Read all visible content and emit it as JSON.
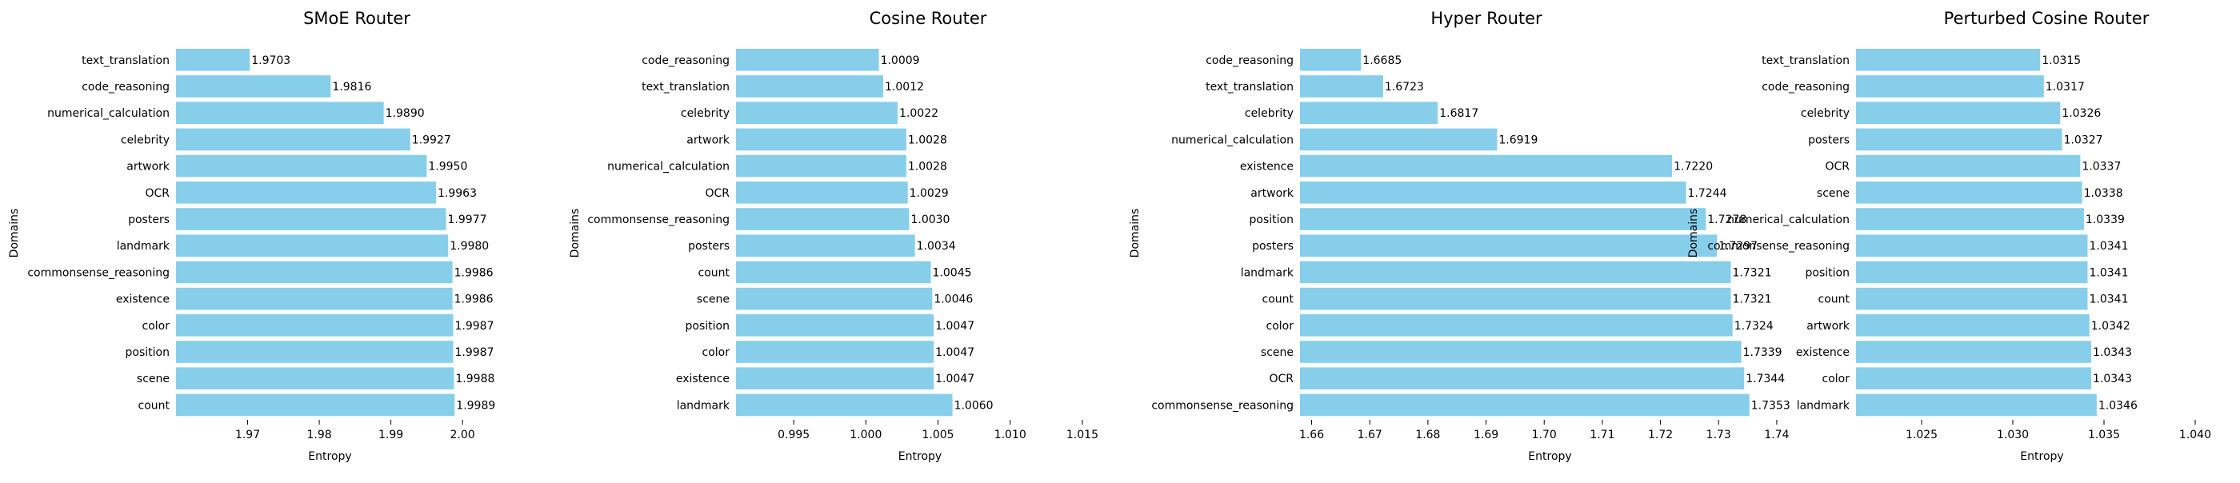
{
  "chart_data": [
    {
      "type": "bar",
      "orientation": "horizontal",
      "title": "SMoE Router",
      "xlabel": "Entropy",
      "ylabel": "Domains",
      "xlim": [
        1.96,
        2.003
      ],
      "xticks": [
        "1.97",
        "1.98",
        "1.99",
        "2.00"
      ],
      "xtick_values": [
        1.97,
        1.98,
        1.99,
        2.0
      ],
      "categories": [
        "text_translation",
        "code_reasoning",
        "numerical_calculation",
        "celebrity",
        "artwork",
        "OCR",
        "posters",
        "landmark",
        "commonsense_reasoning",
        "existence",
        "color",
        "position",
        "scene",
        "count"
      ],
      "values": [
        1.9703,
        1.9816,
        1.989,
        1.9927,
        1.995,
        1.9963,
        1.9977,
        1.998,
        1.9986,
        1.9986,
        1.9987,
        1.9987,
        1.9988,
        1.9989
      ],
      "value_labels": [
        "1.9703",
        "1.9816",
        "1.9890",
        "1.9927",
        "1.9950",
        "1.9963",
        "1.9977",
        "1.9980",
        "1.9986",
        "1.9986",
        "1.9987",
        "1.9987",
        "1.9988",
        "1.9989"
      ],
      "bar_color": "#87ceeb",
      "grid": false
    },
    {
      "type": "bar",
      "orientation": "horizontal",
      "title": "Cosine Router",
      "xlabel": "Entropy",
      "ylabel": "Domains",
      "xlim": [
        0.991,
        1.0165
      ],
      "xticks": [
        "0.995",
        "1.000",
        "1.005",
        "1.010",
        "1.015"
      ],
      "xtick_values": [
        0.995,
        1.0,
        1.005,
        1.01,
        1.015
      ],
      "categories": [
        "code_reasoning",
        "text_translation",
        "celebrity",
        "artwork",
        "numerical_calculation",
        "OCR",
        "commonsense_reasoning",
        "posters",
        "count",
        "scene",
        "position",
        "color",
        "existence",
        "landmark"
      ],
      "values": [
        1.0009,
        1.0012,
        1.0022,
        1.0028,
        1.0028,
        1.0029,
        1.003,
        1.0034,
        1.0045,
        1.0046,
        1.0047,
        1.0047,
        1.0047,
        1.006
      ],
      "value_labels": [
        "1.0009",
        "1.0012",
        "1.0022",
        "1.0028",
        "1.0028",
        "1.0029",
        "1.0030",
        "1.0034",
        "1.0045",
        "1.0046",
        "1.0047",
        "1.0047",
        "1.0047",
        "1.0060"
      ],
      "bar_color": "#87ceeb",
      "grid": false
    },
    {
      "type": "bar",
      "orientation": "horizontal",
      "title": "Hyper Router",
      "xlabel": "Entropy",
      "ylabel": "Domains",
      "xlim": [
        1.658,
        1.744
      ],
      "xticks": [
        "1.66",
        "1.67",
        "1.68",
        "1.69",
        "1.70",
        "1.71",
        "1.72",
        "1.73",
        "1.74"
      ],
      "xtick_values": [
        1.66,
        1.67,
        1.68,
        1.69,
        1.7,
        1.71,
        1.72,
        1.73,
        1.74
      ],
      "categories": [
        "code_reasoning",
        "text_translation",
        "celebrity",
        "numerical_calculation",
        "existence",
        "artwork",
        "position",
        "posters",
        "landmark",
        "count",
        "color",
        "scene",
        "OCR",
        "commonsense_reasoning"
      ],
      "values": [
        1.6685,
        1.6723,
        1.6817,
        1.6919,
        1.722,
        1.7244,
        1.7278,
        1.7297,
        1.7321,
        1.7321,
        1.7324,
        1.7339,
        1.7344,
        1.7353
      ],
      "value_labels": [
        "1.6685",
        "1.6723",
        "1.6817",
        "1.6919",
        "1.7220",
        "1.7244",
        "1.7278",
        "1.7297",
        "1.7321",
        "1.7321",
        "1.7324",
        "1.7339",
        "1.7344",
        "1.7353"
      ],
      "bar_color": "#87ceeb",
      "grid": false
    },
    {
      "type": "bar",
      "orientation": "horizontal",
      "title": "Perturbed Cosine Router",
      "xlabel": "Entropy",
      "ylabel": "Domains",
      "xlim": [
        1.0214,
        1.0418
      ],
      "xticks": [
        "1.025",
        "1.030",
        "1.035",
        "1.040"
      ],
      "xtick_values": [
        1.025,
        1.03,
        1.035,
        1.04
      ],
      "categories": [
        "text_translation",
        "code_reasoning",
        "celebrity",
        "posters",
        "OCR",
        "scene",
        "numerical_calculation",
        "commonsense_reasoning",
        "position",
        "count",
        "artwork",
        "existence",
        "color",
        "landmark"
      ],
      "values": [
        1.0315,
        1.0317,
        1.0326,
        1.0327,
        1.0337,
        1.0338,
        1.0339,
        1.0341,
        1.0341,
        1.0341,
        1.0342,
        1.0343,
        1.0343,
        1.0346
      ],
      "value_labels": [
        "1.0315",
        "1.0317",
        "1.0326",
        "1.0327",
        "1.0337",
        "1.0338",
        "1.0339",
        "1.0341",
        "1.0341",
        "1.0341",
        "1.0342",
        "1.0343",
        "1.0343",
        "1.0346"
      ],
      "bar_color": "#87ceeb",
      "grid": false
    }
  ]
}
